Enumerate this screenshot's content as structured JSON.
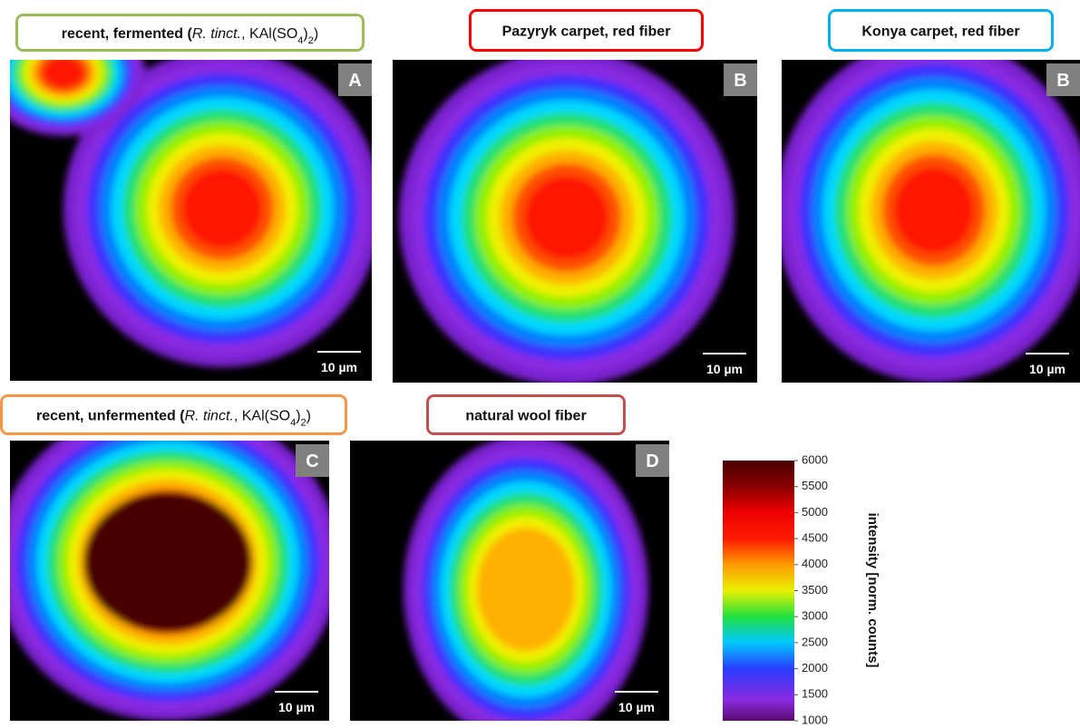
{
  "panels": [
    {
      "title": [
        "recent, fermented (",
        "R. tinct.",
        ", KAl(SO",
        "4",
        ")",
        "2",
        ")"
      ],
      "letter": "A",
      "scale": "10 µm"
    },
    {
      "title": [
        "Pazyryk carpet, red fiber"
      ],
      "letter": "B",
      "scale": "10 µm"
    },
    {
      "title": [
        "Konya carpet, red fiber"
      ],
      "letter": "B",
      "scale": "10 µm"
    },
    {
      "title": [
        "recent, unfermented (",
        "R. tinct.",
        ", KAl(SO",
        "4",
        ")",
        "2",
        ")"
      ],
      "letter": "C",
      "scale": "10 µm"
    },
    {
      "title": [
        "natural wool fiber"
      ],
      "letter": "D",
      "scale": "10 µm"
    }
  ],
  "colorbar": {
    "label": "intensity [norm. counts]",
    "lim": [
      1000,
      6000
    ],
    "ticks": [
      1000,
      1500,
      2000,
      2500,
      3000,
      3500,
      4000,
      4500,
      5000,
      5500,
      6000
    ]
  }
}
